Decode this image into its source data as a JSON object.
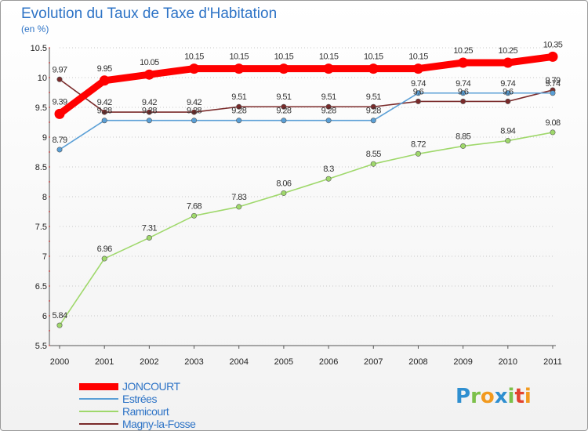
{
  "title": "Evolution du Taux de Taxe d'Habitation",
  "unit_label": "(en %)",
  "logo": {
    "letters": [
      {
        "ch": "P",
        "color": "#2f8fd0"
      },
      {
        "ch": "r",
        "color": "#7cc04a"
      },
      {
        "ch": "o",
        "color": "#f29a1f"
      },
      {
        "ch": "x",
        "color": "#2f8fd0"
      },
      {
        "ch": "i",
        "color": "#7cc04a"
      },
      {
        "ch": "t",
        "color": "#e2432f"
      },
      {
        "ch": "i",
        "color": "#f29a1f"
      }
    ]
  },
  "chart_data": {
    "type": "line",
    "x": [
      2000,
      2001,
      2002,
      2003,
      2004,
      2005,
      2006,
      2007,
      2008,
      2009,
      2010,
      2011
    ],
    "xticks": [
      "2000",
      "2001",
      "2002",
      "2003",
      "2004",
      "2005",
      "2006",
      "2007",
      "2008",
      "2009",
      "2010",
      "2011"
    ],
    "ylim": [
      5.5,
      10.5
    ],
    "yticks": [
      "5.5",
      "6",
      "6.5",
      "7",
      "7.5",
      "8",
      "8.5",
      "9",
      "9.5",
      "10",
      "10.5"
    ],
    "grid": "horizontal dotted",
    "legend_position": "bottom-left",
    "series": [
      {
        "name": "Magny-la-Fosse",
        "color": "#7a2a2a",
        "values": [
          9.97,
          9.42,
          9.42,
          9.42,
          9.51,
          9.51,
          9.51,
          9.51,
          9.6,
          9.6,
          9.6,
          9.79
        ],
        "labels": [
          "9.97",
          "9.42",
          "9.42",
          "9.42",
          "9.51",
          "9.51",
          "9.51",
          "9.51",
          "9.6",
          "9.6",
          "9.6",
          "9.79"
        ]
      },
      {
        "name": "Estrées",
        "color": "#5a9fd6",
        "values": [
          8.79,
          9.28,
          9.28,
          9.28,
          9.28,
          9.28,
          9.28,
          9.28,
          9.74,
          9.74,
          9.74,
          9.74
        ],
        "labels": [
          "8.79",
          "9.28",
          "9.28",
          "9.28",
          "9.28",
          "9.28",
          "9.28",
          "9.28",
          "9.74",
          "9.74",
          "9.74",
          "9.74"
        ]
      },
      {
        "name": "Ramicourt",
        "color": "#9fd86b",
        "values": [
          5.84,
          6.96,
          7.31,
          7.68,
          7.83,
          8.06,
          8.3,
          8.55,
          8.72,
          8.85,
          8.94,
          9.08
        ],
        "labels": [
          "5.84",
          "6.96",
          "7.31",
          "7.68",
          "7.83",
          "8.06",
          "8.3",
          "8.55",
          "8.72",
          "8.85",
          "8.94",
          "9.08"
        ]
      },
      {
        "name": "JONCOURT",
        "color": "#ff0000",
        "values": [
          9.39,
          9.95,
          10.05,
          10.15,
          10.15,
          10.15,
          10.15,
          10.15,
          10.15,
          10.25,
          10.25,
          10.35
        ],
        "labels": [
          "9.39",
          "9.95",
          "10.05",
          "10.15",
          "10.15",
          "10.15",
          "10.15",
          "10.15",
          "10.15",
          "10.25",
          "10.25",
          "10.35"
        ]
      }
    ]
  },
  "legend": [
    {
      "name": "JONCOURT",
      "color": "#ff0000"
    },
    {
      "name": "Estrées",
      "color": "#5a9fd6"
    },
    {
      "name": "Ramicourt",
      "color": "#9fd86b"
    },
    {
      "name": "Magny-la-Fosse",
      "color": "#7a2a2a"
    }
  ]
}
